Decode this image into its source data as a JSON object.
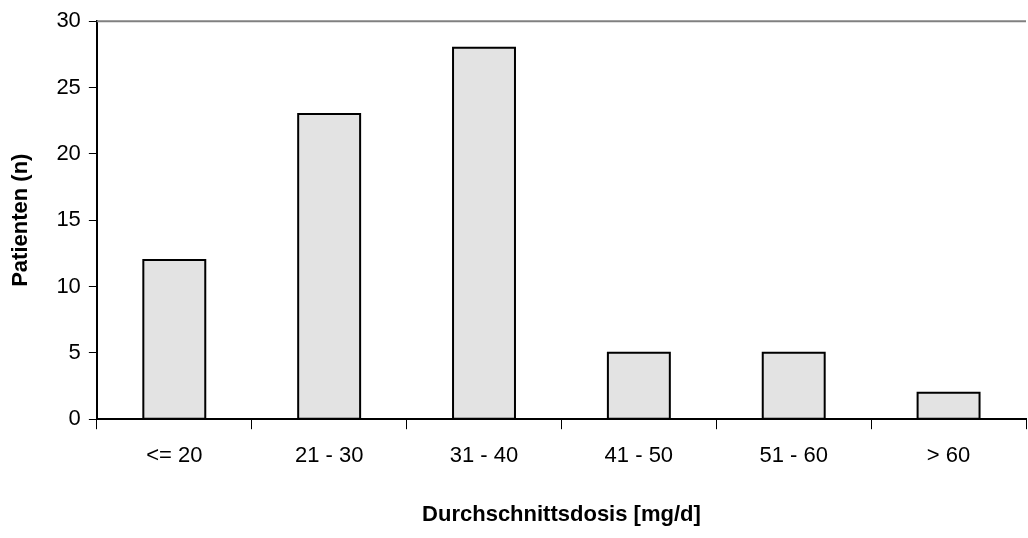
{
  "chart_data": {
    "type": "bar",
    "xlabel": "Durchschnittsdosis [mg/d]",
    "ylabel": "Patienten (n)",
    "categories": [
      "<= 20",
      "21 - 30",
      "31 - 40",
      "41 - 50",
      "51 - 60",
      "> 60"
    ],
    "values": [
      12,
      23,
      28,
      5,
      5,
      2
    ],
    "color": "#e3e3e3",
    "ylim": [
      0,
      30
    ],
    "yticks": [
      0,
      5,
      10,
      15,
      20,
      25,
      30
    ],
    "grid": false,
    "legend": false
  }
}
